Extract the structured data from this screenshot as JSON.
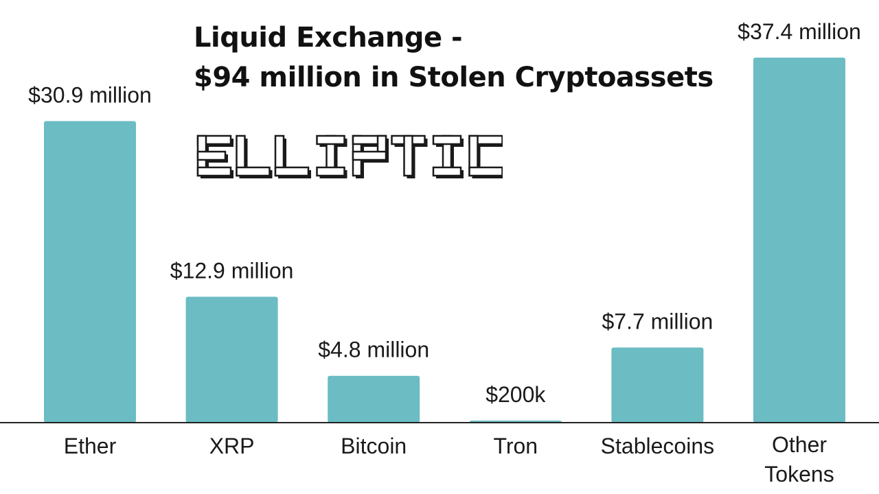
{
  "title": {
    "line1": "Liquid Exchange -",
    "line2": "$94 million in Stolen Cryptoassets"
  },
  "brand": {
    "logo_text": "ELLIPTIC"
  },
  "colors": {
    "bar": "#6bbcc3",
    "axis": "#222222",
    "text": "#1a1a1a"
  },
  "chart_data": {
    "type": "bar",
    "unit": "USD million",
    "categories": [
      "Ether",
      "XRP",
      "Bitcoin",
      "Tron",
      "Stablecoins",
      "Other Tokens"
    ],
    "category_lines": [
      [
        "Ether"
      ],
      [
        "XRP"
      ],
      [
        "Bitcoin"
      ],
      [
        "Tron"
      ],
      [
        "Stablecoins"
      ],
      [
        "Other",
        "Tokens"
      ]
    ],
    "values": [
      30.9,
      12.9,
      4.8,
      0.2,
      7.7,
      37.4
    ],
    "data_labels": [
      "$30.9 million",
      "$12.9 million",
      "$4.8 million",
      "$200k",
      "$7.7 million",
      "$37.4 million"
    ],
    "ylim": [
      0,
      40
    ],
    "grid": false,
    "legend": "none"
  }
}
